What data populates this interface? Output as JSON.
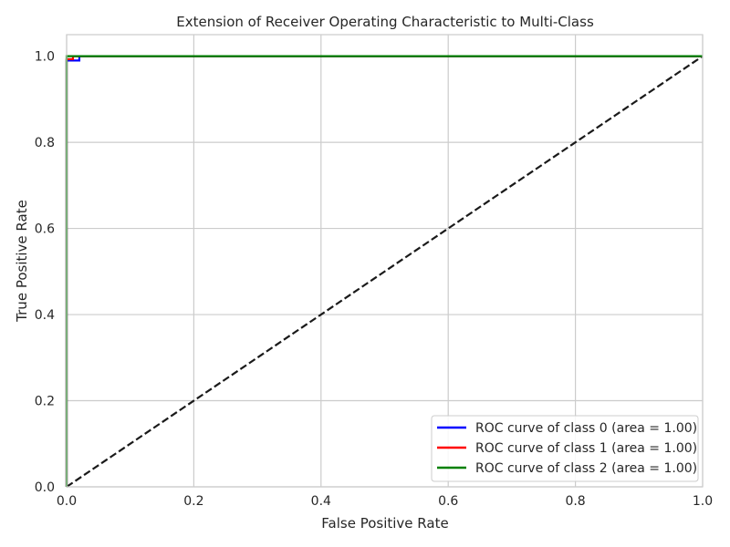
{
  "chart_data": {
    "type": "line",
    "title": "Extension of Receiver Operating Characteristic to Multi-Class",
    "xlabel": "False Positive Rate",
    "ylabel": "True Positive Rate",
    "xlim": [
      0.0,
      1.0
    ],
    "ylim": [
      0.0,
      1.05
    ],
    "xticks": [
      "0.0",
      "0.2",
      "0.4",
      "0.6",
      "0.8",
      "1.0"
    ],
    "yticks": [
      "0.0",
      "0.2",
      "0.4",
      "0.6",
      "0.8",
      "1.0"
    ],
    "grid": true,
    "legend_position": "bottom-right",
    "series": [
      {
        "name": "ROC curve of class 0 (area = 1.00)",
        "color": "#0000ff",
        "x": [
          0.0,
          0.0,
          0.02,
          0.02,
          1.0
        ],
        "y": [
          0.0,
          0.99,
          0.99,
          1.0,
          1.0
        ]
      },
      {
        "name": "ROC curve of class 1 (area = 1.00)",
        "color": "#ff0000",
        "x": [
          0.0,
          0.0,
          0.01,
          0.01,
          1.0
        ],
        "y": [
          0.0,
          0.993,
          0.993,
          1.0,
          1.0
        ]
      },
      {
        "name": "ROC curve of class 2 (area = 1.00)",
        "color": "#008000",
        "x": [
          0.0,
          0.0,
          1.0
        ],
        "y": [
          0.0,
          1.0,
          1.0
        ]
      }
    ],
    "reference_line": {
      "color": "#1a1a1a",
      "style": "dashed",
      "x": [
        0.0,
        1.0
      ],
      "y": [
        0.0,
        1.0
      ]
    }
  }
}
